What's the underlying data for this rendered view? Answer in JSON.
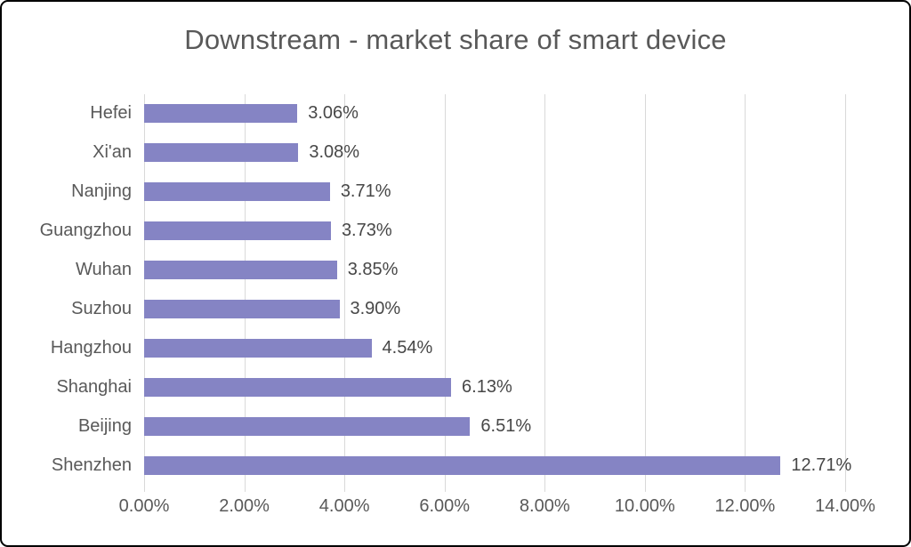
{
  "chart_data": {
    "type": "bar",
    "orientation": "horizontal",
    "title": "Downstream - market share of smart device",
    "categories": [
      "Hefei",
      "Xi'an",
      "Nanjing",
      "Guangzhou",
      "Wuhan",
      "Suzhou",
      "Hangzhou",
      "Shanghai",
      "Beijing",
      "Shenzhen"
    ],
    "values": [
      3.06,
      3.08,
      3.71,
      3.73,
      3.85,
      3.9,
      4.54,
      6.13,
      6.51,
      12.71
    ],
    "value_labels": [
      "3.06%",
      "3.08%",
      "3.71%",
      "3.73%",
      "3.85%",
      "3.90%",
      "4.54%",
      "6.13%",
      "6.51%",
      "12.71%"
    ],
    "x_tick_labels": [
      "0.00%",
      "2.00%",
      "4.00%",
      "6.00%",
      "8.00%",
      "10.00%",
      "12.00%",
      "14.00%"
    ],
    "x_tick_values": [
      0,
      2,
      4,
      6,
      8,
      10,
      12,
      14
    ],
    "xlim": [
      0,
      14
    ],
    "xlabel": "",
    "ylabel": "",
    "grid": "vertical",
    "legend_position": "none",
    "colors": {
      "bar": "#8584c4",
      "gridline": "#d9d9d9",
      "title_text": "#595959",
      "axis_text": "#595959",
      "value_label_text": "#474747",
      "border": "#000000",
      "background": "#ffffff"
    }
  }
}
